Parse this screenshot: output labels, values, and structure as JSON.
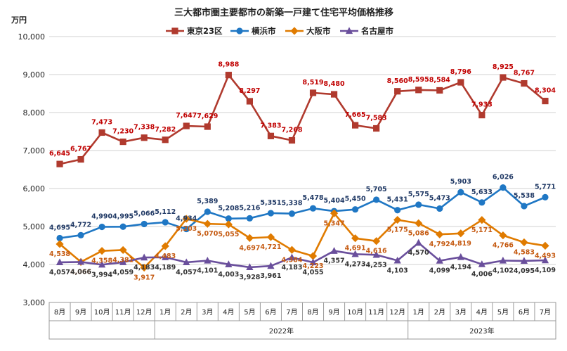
{
  "chart_data": {
    "type": "line",
    "title": "三大都市圏主要都市の新築一戸建て住宅平均価格推移",
    "ylabel": "万円",
    "ylim": [
      3000,
      10000
    ],
    "yticks": [
      "3,000",
      "4,000",
      "5,000",
      "6,000",
      "7,000",
      "8,000",
      "9,000",
      "10,000"
    ],
    "grid": true,
    "legend_position": "top",
    "categories": [
      "8月",
      "9月",
      "10月",
      "11月",
      "12月",
      "1月",
      "2月",
      "3月",
      "4月",
      "5月",
      "6月",
      "7月",
      "8月",
      "9月",
      "10月",
      "11月",
      "12月",
      "1月",
      "2月",
      "3月",
      "4月",
      "5月",
      "6月",
      "7月"
    ],
    "year_groups": [
      {
        "label": "",
        "start": 0,
        "end": 4
      },
      {
        "label": "2022年",
        "start": 5,
        "end": 16
      },
      {
        "label": "2023年",
        "start": 17,
        "end": 23
      }
    ],
    "series": [
      {
        "name": "東京23区",
        "color": "#b03a2e",
        "text_color": "#c00000",
        "marker": "square",
        "values": [
          6645,
          6767,
          7473,
          7230,
          7338,
          7282,
          7647,
          7629,
          8988,
          8297,
          7383,
          7268,
          8519,
          8480,
          7665,
          7583,
          8560,
          8595,
          8584,
          8796,
          7933,
          8925,
          8767,
          8304
        ],
        "labels": [
          "6,645",
          "6,767",
          "7,473",
          "7,230",
          "7,338",
          "7,282",
          "7,647",
          "7,629",
          "8,988",
          "8,297",
          "7,383",
          "7,268",
          "8,519",
          "8,480",
          "7,665",
          "7,583",
          "8,560",
          "8,595",
          "8,584",
          "8,796",
          "7,933",
          "8,925",
          "8,767",
          "8,304"
        ]
      },
      {
        "name": "横浜市",
        "color": "#1f77c4",
        "text_color": "#1f3864",
        "marker": "circle",
        "values": [
          4695,
          4772,
          4990,
          4995,
          5066,
          5112,
          4934,
          5389,
          5208,
          5216,
          5351,
          5338,
          5478,
          5404,
          5450,
          5705,
          5431,
          5575,
          5473,
          5903,
          5633,
          6026,
          5538,
          5771
        ],
        "labels": [
          "4,695",
          "4,772",
          "4,990",
          "4,995",
          "5,066",
          "5,112",
          "4,934",
          "5,389",
          "5,208",
          "5,216",
          "5,351",
          "5,338",
          "5,478",
          "5,404",
          "5,450",
          "5,705",
          "5,431",
          "5,575",
          "5,473",
          "5,903",
          "5,633",
          "6,026",
          "5,538",
          "5,771"
        ]
      },
      {
        "name": "大阪市",
        "color": "#e07b00",
        "text_color": "#c55a11",
        "marker": "diamond",
        "values": [
          4538,
          4066,
          4358,
          4381,
          3917,
          4483,
          5203,
          5070,
          5055,
          4697,
          4721,
          4384,
          4223,
          5347,
          4691,
          4616,
          5175,
          5086,
          4792,
          4819,
          5171,
          4766,
          4583,
          4493
        ],
        "labels": [
          "4,538",
          "4,066",
          "4,358",
          "4,381",
          "3,917",
          "4,483",
          "5,203",
          "5,070",
          "5,055",
          "4,697",
          "4,721",
          "4,384",
          "4,223",
          "5,347",
          "4,691",
          "4,616",
          "5,175",
          "5,086",
          "4,792",
          "4,819",
          "5,171",
          "4,766",
          "4,583",
          "4,493"
        ]
      },
      {
        "name": "名古屋市",
        "color": "#6a4f9c",
        "text_color": "#333333",
        "marker": "triangle",
        "values": [
          4057,
          4066,
          3994,
          4059,
          4183,
          4189,
          4057,
          4101,
          4003,
          3928,
          3961,
          4183,
          4055,
          4357,
          4273,
          4253,
          4103,
          4570,
          4099,
          4194,
          4006,
          4102,
          4095,
          4109
        ],
        "labels": [
          "4,057",
          "4,066",
          "3,994",
          "4,059",
          "4,183",
          "4,189",
          "4,057",
          "4,101",
          "4,003",
          "3,928",
          "3,961",
          "4,183",
          "4,055",
          "4,357",
          "4,273",
          "4,253",
          "4,103",
          "4,570",
          "4,099",
          "4,194",
          "4,006",
          "4,102",
          "4,095",
          "4,109"
        ]
      }
    ]
  }
}
